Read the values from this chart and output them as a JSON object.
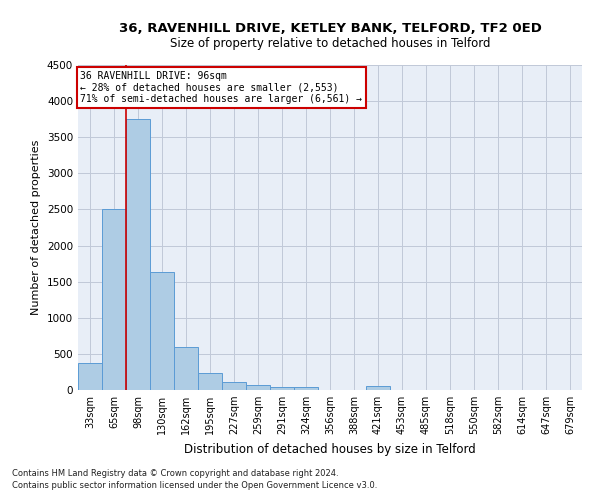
{
  "title1": "36, RAVENHILL DRIVE, KETLEY BANK, TELFORD, TF2 0ED",
  "title2": "Size of property relative to detached houses in Telford",
  "xlabel": "Distribution of detached houses by size in Telford",
  "ylabel": "Number of detached properties",
  "footnote1": "Contains HM Land Registry data © Crown copyright and database right 2024.",
  "footnote2": "Contains public sector information licensed under the Open Government Licence v3.0.",
  "annotation_title": "36 RAVENHILL DRIVE: 96sqm",
  "annotation_line1": "← 28% of detached houses are smaller (2,553)",
  "annotation_line2": "71% of semi-detached houses are larger (6,561) →",
  "bar_labels": [
    "33sqm",
    "65sqm",
    "98sqm",
    "130sqm",
    "162sqm",
    "195sqm",
    "227sqm",
    "259sqm",
    "291sqm",
    "324sqm",
    "356sqm",
    "388sqm",
    "421sqm",
    "453sqm",
    "485sqm",
    "518sqm",
    "550sqm",
    "582sqm",
    "614sqm",
    "647sqm",
    "679sqm"
  ],
  "bar_values": [
    370,
    2500,
    3750,
    1640,
    590,
    230,
    110,
    65,
    40,
    35,
    0,
    0,
    60,
    0,
    0,
    0,
    0,
    0,
    0,
    0,
    0
  ],
  "bar_color": "#aecce4",
  "bar_edge_color": "#5b9bd5",
  "highlight_index": 2,
  "highlight_line_color": "#cc0000",
  "ylim": [
    0,
    4500
  ],
  "yticks": [
    0,
    500,
    1000,
    1500,
    2000,
    2500,
    3000,
    3500,
    4000,
    4500
  ],
  "bg_color": "#e8eef7",
  "annotation_box_color": "#cc0000",
  "grid_color": "#c0c8d8",
  "fig_width": 6.0,
  "fig_height": 5.0,
  "dpi": 100
}
